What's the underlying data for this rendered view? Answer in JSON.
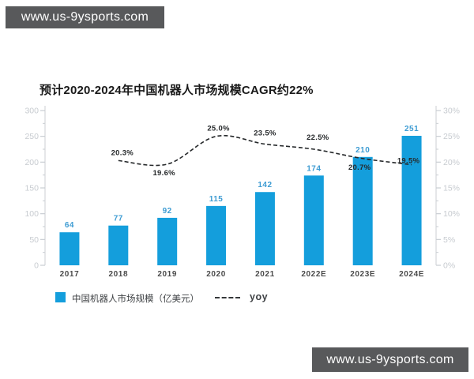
{
  "watermark_top": {
    "text": "www.us-9ysports.com"
  },
  "watermark_bottom": {
    "text": "www.us-9ysports.com"
  },
  "colors": {
    "bar": "#149EDC",
    "bar_value_label": "#3E9CD3",
    "line": "#26292B",
    "axis_label": "#C7CBD0",
    "watermark_bg": "#58595B"
  },
  "chart_data": {
    "type": "bar",
    "title": "预计2020-2024年中国机器人市场规模CAGR约22%",
    "categories": [
      "2017",
      "2018",
      "2019",
      "2020",
      "2021",
      "2022E",
      "2023E",
      "2024E"
    ],
    "series": [
      {
        "name": "中国机器人市场规模（亿美元）",
        "type": "bar",
        "axis": "left",
        "color": "#149EDC",
        "values": [
          64,
          77,
          92,
          115,
          142,
          174,
          210,
          251
        ]
      },
      {
        "name": "yoy",
        "type": "line",
        "style": "dashed",
        "axis": "right",
        "color": "#26292B",
        "unit": "%",
        "values": [
          null,
          20.3,
          19.6,
          25.0,
          23.5,
          22.5,
          20.7,
          19.5
        ]
      }
    ],
    "left_axis": {
      "min": 0,
      "max": 300,
      "tick_values": [
        300,
        250,
        200,
        150,
        100,
        50,
        0
      ],
      "tick_labels": [
        "300",
        "250",
        "200",
        "150",
        "100",
        "50",
        "0"
      ]
    },
    "right_axis": {
      "min": 0,
      "max": 30,
      "tick_values": [
        30,
        25,
        20,
        15,
        10,
        5,
        0
      ],
      "tick_labels": [
        "30%",
        "25%",
        "20%",
        "15%",
        "10%",
        "5%",
        "0%"
      ]
    },
    "grid": false,
    "legend": [
      {
        "label": "中国机器人市场规模（亿美元）",
        "swatch": "square"
      },
      {
        "label": "yoy",
        "swatch": "dashed-line"
      }
    ],
    "legend_position": "bottom"
  }
}
